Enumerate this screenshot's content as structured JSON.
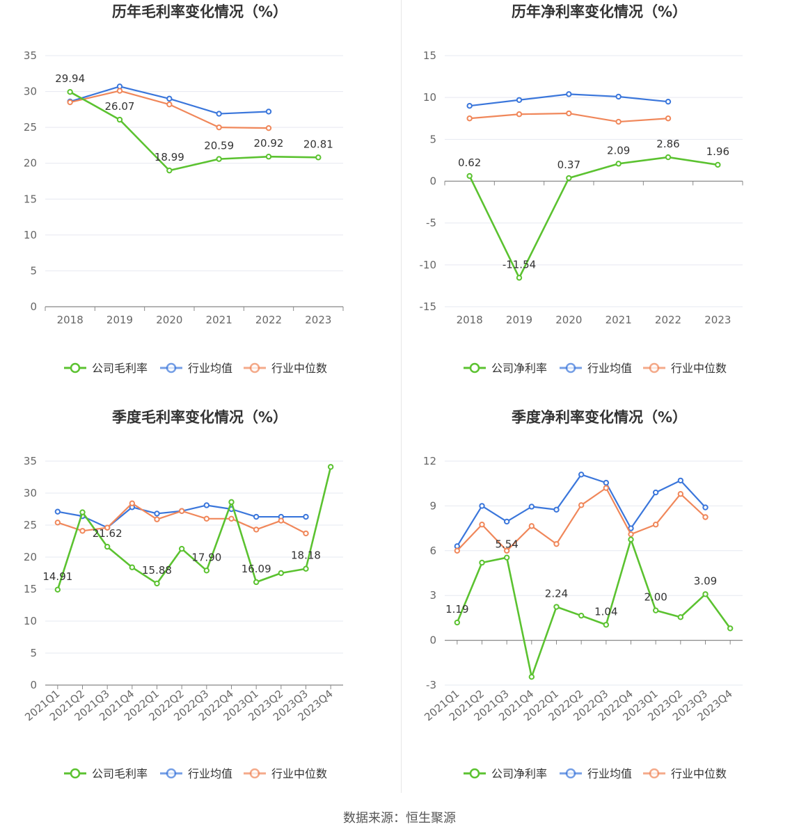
{
  "colors": {
    "company": "#5bc230",
    "avg": "#3a76db",
    "median": "#f0875a",
    "grid": "#e6e8f0",
    "axis": "#666666",
    "text": "#333333"
  },
  "source": "数据来源：恒生聚源",
  "chart_data": [
    {
      "type": "line",
      "title": "历年毛利率变化情况（%）",
      "categories": [
        "2018",
        "2019",
        "2020",
        "2021",
        "2022",
        "2023"
      ],
      "ylim": [
        0,
        35
      ],
      "yticks": [
        0,
        5,
        10,
        15,
        20,
        25,
        30,
        35
      ],
      "rotate_labels": false,
      "series": [
        {
          "name": "公司毛利率",
          "key": "company",
          "values": [
            29.94,
            26.07,
            18.99,
            20.59,
            20.92,
            20.81
          ],
          "labels": [
            "29.94",
            "26.07",
            "18.99",
            "20.59",
            "20.92",
            "20.81"
          ]
        },
        {
          "name": "行业均值",
          "key": "avg",
          "values": [
            28.6,
            30.7,
            29.0,
            26.9,
            27.2,
            null
          ]
        },
        {
          "name": "行业中位数",
          "key": "median",
          "values": [
            28.5,
            30.1,
            28.2,
            25.0,
            24.9,
            null
          ]
        }
      ]
    },
    {
      "type": "line",
      "title": "历年净利率变化情况（%）",
      "categories": [
        "2018",
        "2019",
        "2020",
        "2021",
        "2022",
        "2023"
      ],
      "ylim": [
        -15,
        15
      ],
      "yticks": [
        -15,
        -10,
        -5,
        0,
        5,
        10,
        15
      ],
      "rotate_labels": false,
      "series": [
        {
          "name": "公司净利率",
          "key": "company",
          "values": [
            0.62,
            -11.54,
            0.37,
            2.09,
            2.86,
            1.96
          ],
          "labels": [
            "0.62",
            "-11.54",
            "0.37",
            "2.09",
            "2.86",
            "1.96"
          ]
        },
        {
          "name": "行业均值",
          "key": "avg",
          "values": [
            9.0,
            9.7,
            10.4,
            10.1,
            9.5,
            null
          ]
        },
        {
          "name": "行业中位数",
          "key": "median",
          "values": [
            7.5,
            8.0,
            8.1,
            7.1,
            7.5,
            null
          ]
        }
      ]
    },
    {
      "type": "line",
      "title": "季度毛利率变化情况（%）",
      "categories": [
        "2021Q1",
        "2021Q2",
        "2021Q3",
        "2021Q4",
        "2022Q1",
        "2022Q2",
        "2022Q3",
        "2022Q4",
        "2023Q1",
        "2023Q2",
        "2023Q3",
        "2023Q4"
      ],
      "ylim": [
        0,
        35
      ],
      "yticks": [
        0,
        5,
        10,
        15,
        20,
        25,
        30,
        35
      ],
      "rotate_labels": true,
      "series": [
        {
          "name": "公司毛利率",
          "key": "company",
          "values": [
            14.91,
            27.0,
            21.62,
            18.4,
            15.88,
            21.3,
            17.9,
            28.6,
            16.09,
            17.5,
            18.18,
            34.1
          ],
          "labels": [
            "14.91",
            "",
            "21.62",
            "",
            "15.88",
            "",
            "17.90",
            "",
            "16.09",
            "",
            "18.18",
            ""
          ]
        },
        {
          "name": "行业均值",
          "key": "avg",
          "values": [
            27.1,
            26.4,
            24.6,
            27.8,
            26.8,
            27.2,
            28.1,
            27.5,
            26.3,
            26.3,
            26.3,
            null
          ]
        },
        {
          "name": "行业中位数",
          "key": "median",
          "values": [
            25.4,
            24.1,
            24.6,
            28.4,
            25.9,
            27.2,
            26.0,
            26.0,
            24.3,
            25.7,
            23.7,
            null
          ]
        }
      ]
    },
    {
      "type": "line",
      "title": "季度净利率变化情况（%）",
      "categories": [
        "2021Q1",
        "2021Q2",
        "2021Q3",
        "2021Q4",
        "2022Q1",
        "2022Q2",
        "2022Q3",
        "2022Q4",
        "2023Q1",
        "2023Q2",
        "2023Q3",
        "2023Q4"
      ],
      "ylim": [
        -3,
        12
      ],
      "yticks": [
        -3,
        0,
        3,
        6,
        9,
        12
      ],
      "rotate_labels": true,
      "series": [
        {
          "name": "公司净利率",
          "key": "company",
          "values": [
            1.19,
            5.2,
            5.54,
            -2.45,
            2.24,
            1.65,
            1.04,
            6.75,
            2.0,
            1.55,
            3.09,
            0.8
          ],
          "labels": [
            "1.19",
            "",
            "5.54",
            "",
            "2.24",
            "",
            "1.04",
            "",
            "2.00",
            "",
            "3.09",
            ""
          ]
        },
        {
          "name": "行业均值",
          "key": "avg",
          "values": [
            6.3,
            9.0,
            7.95,
            8.95,
            8.75,
            11.1,
            10.55,
            7.5,
            9.9,
            10.7,
            8.9,
            null
          ]
        },
        {
          "name": "行业中位数",
          "key": "median",
          "values": [
            6.0,
            7.75,
            6.0,
            7.65,
            6.45,
            9.05,
            10.2,
            7.1,
            7.75,
            9.8,
            8.25,
            null
          ]
        }
      ]
    }
  ]
}
